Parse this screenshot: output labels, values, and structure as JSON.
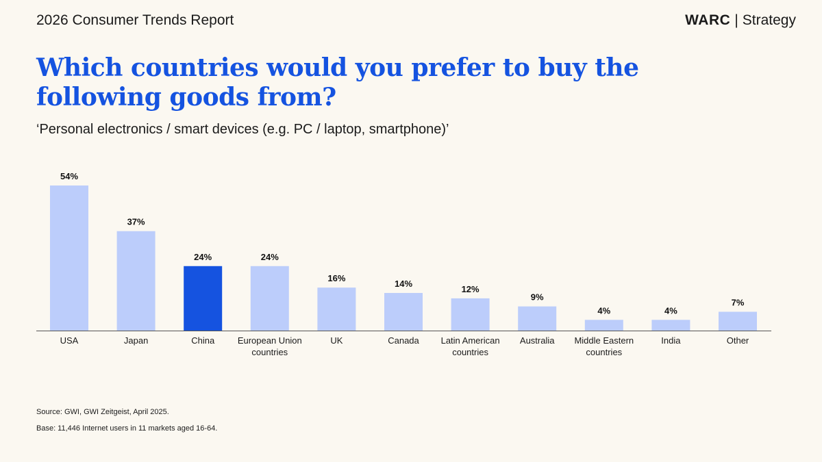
{
  "header": {
    "report_title": "2026 Consumer Trends Report",
    "brand_logo": "WARC",
    "brand_separator": "|",
    "brand_section": "Strategy"
  },
  "headline": "Which countries would you prefer to buy the following goods from?",
  "subtitle": "‘Personal electronics / smart devices (e.g. PC / laptop, smartphone)’",
  "chart_data": {
    "type": "bar",
    "title": "",
    "xlabel": "",
    "ylabel": "",
    "ylim": [
      0,
      54
    ],
    "grid": false,
    "legend": "none",
    "categories": [
      [
        "USA"
      ],
      [
        "Japan"
      ],
      [
        "China"
      ],
      [
        "European Union",
        "countries"
      ],
      [
        "UK"
      ],
      [
        "Canada"
      ],
      [
        "Latin American",
        "countries"
      ],
      [
        "Australia"
      ],
      [
        "Middle Eastern",
        "countries"
      ],
      [
        "India"
      ],
      [
        "Other"
      ]
    ],
    "values": [
      54,
      37,
      24,
      24,
      16,
      14,
      12,
      9,
      4,
      4,
      7
    ],
    "value_labels": [
      "54%",
      "37%",
      "24%",
      "24%",
      "16%",
      "14%",
      "12%",
      "9%",
      "4%",
      "4%",
      "7%"
    ],
    "highlight_index": 2,
    "colors": {
      "default": "#bccdfb",
      "highlight": "#1553e0",
      "axis": "#555555"
    }
  },
  "footer": {
    "source": "Source: GWI, GWI Zeitgeist, April 2025.",
    "base": "Base: 11,446 Internet users in 11 markets aged 16-64."
  }
}
